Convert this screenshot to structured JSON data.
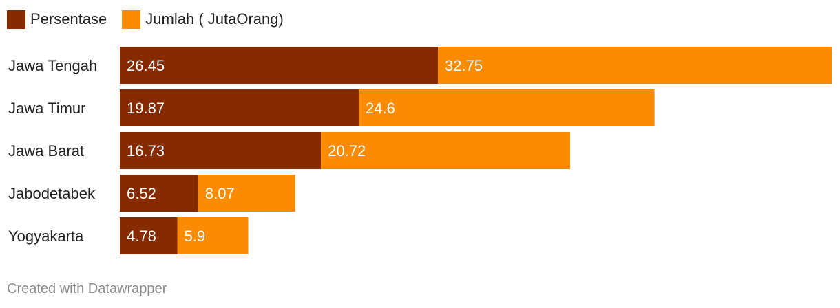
{
  "chart_data": {
    "type": "bar",
    "orientation": "horizontal",
    "stacked": true,
    "categories": [
      "Jawa Tengah",
      "Jawa Timur",
      "Jawa Barat",
      "Jabodetabek",
      "Yogyakarta"
    ],
    "series": [
      {
        "name": "Persentase",
        "color": "#862a00",
        "values": [
          26.45,
          19.87,
          16.73,
          6.52,
          4.78
        ]
      },
      {
        "name": "Jumlah ( JutaOrang)",
        "color": "#fb8b00",
        "values": [
          32.75,
          24.6,
          20.72,
          8.07,
          5.9
        ]
      }
    ],
    "xlim": [
      0,
      59.2
    ],
    "legend_position": "top-left",
    "grid": false,
    "data_labels": true
  },
  "footer": {
    "text": "Created with Datawrapper"
  }
}
